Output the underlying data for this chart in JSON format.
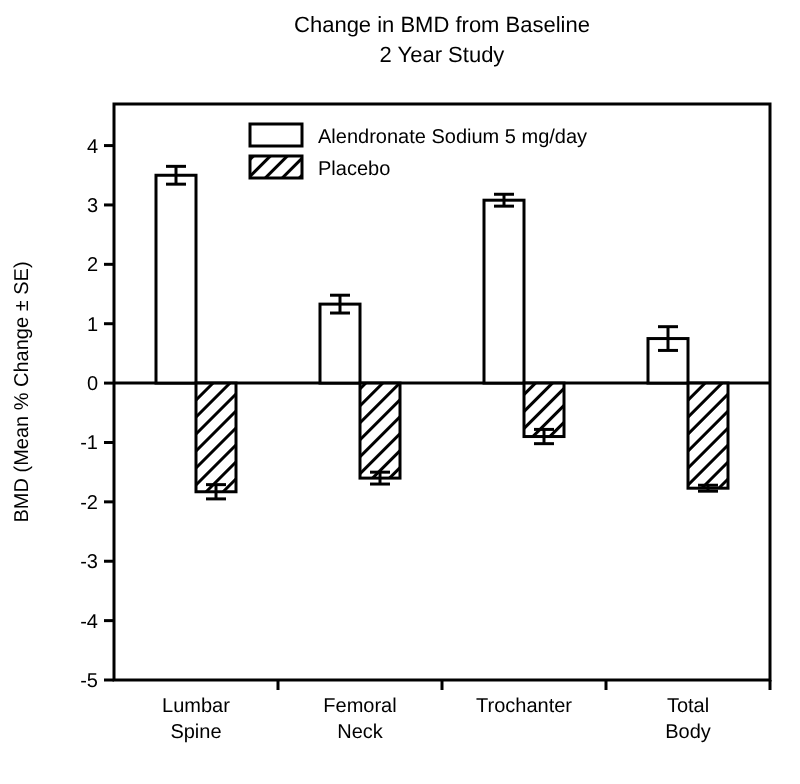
{
  "chart_data": {
    "type": "bar",
    "title": "Change in BMD from Baseline",
    "subtitle": "2 Year Study",
    "ylabel": "BMD (Mean % Change ± SE)",
    "categories": [
      "Lumbar Spine",
      "Femoral Neck",
      "Trochanter",
      "Total Body"
    ],
    "series": [
      {
        "name": "Alendronate Sodium 5 mg/day",
        "color": "#ffffff",
        "values": [
          3.5,
          1.33,
          3.08,
          0.75
        ],
        "errors": [
          0.15,
          0.15,
          0.1,
          0.2
        ]
      },
      {
        "name": "Placebo",
        "color": "#000000",
        "values": [
          -1.83,
          -1.6,
          -0.9,
          -1.77
        ],
        "errors": [
          0.12,
          0.1,
          0.12,
          0.05
        ]
      }
    ],
    "ylim": [
      -5,
      4.7
    ],
    "yticks": [
      -5,
      -4,
      -3,
      -2,
      -1,
      0,
      1,
      2,
      3,
      4
    ],
    "legend": "top",
    "ref_lines": [
      {
        "axis": "y",
        "value": 0
      }
    ]
  }
}
